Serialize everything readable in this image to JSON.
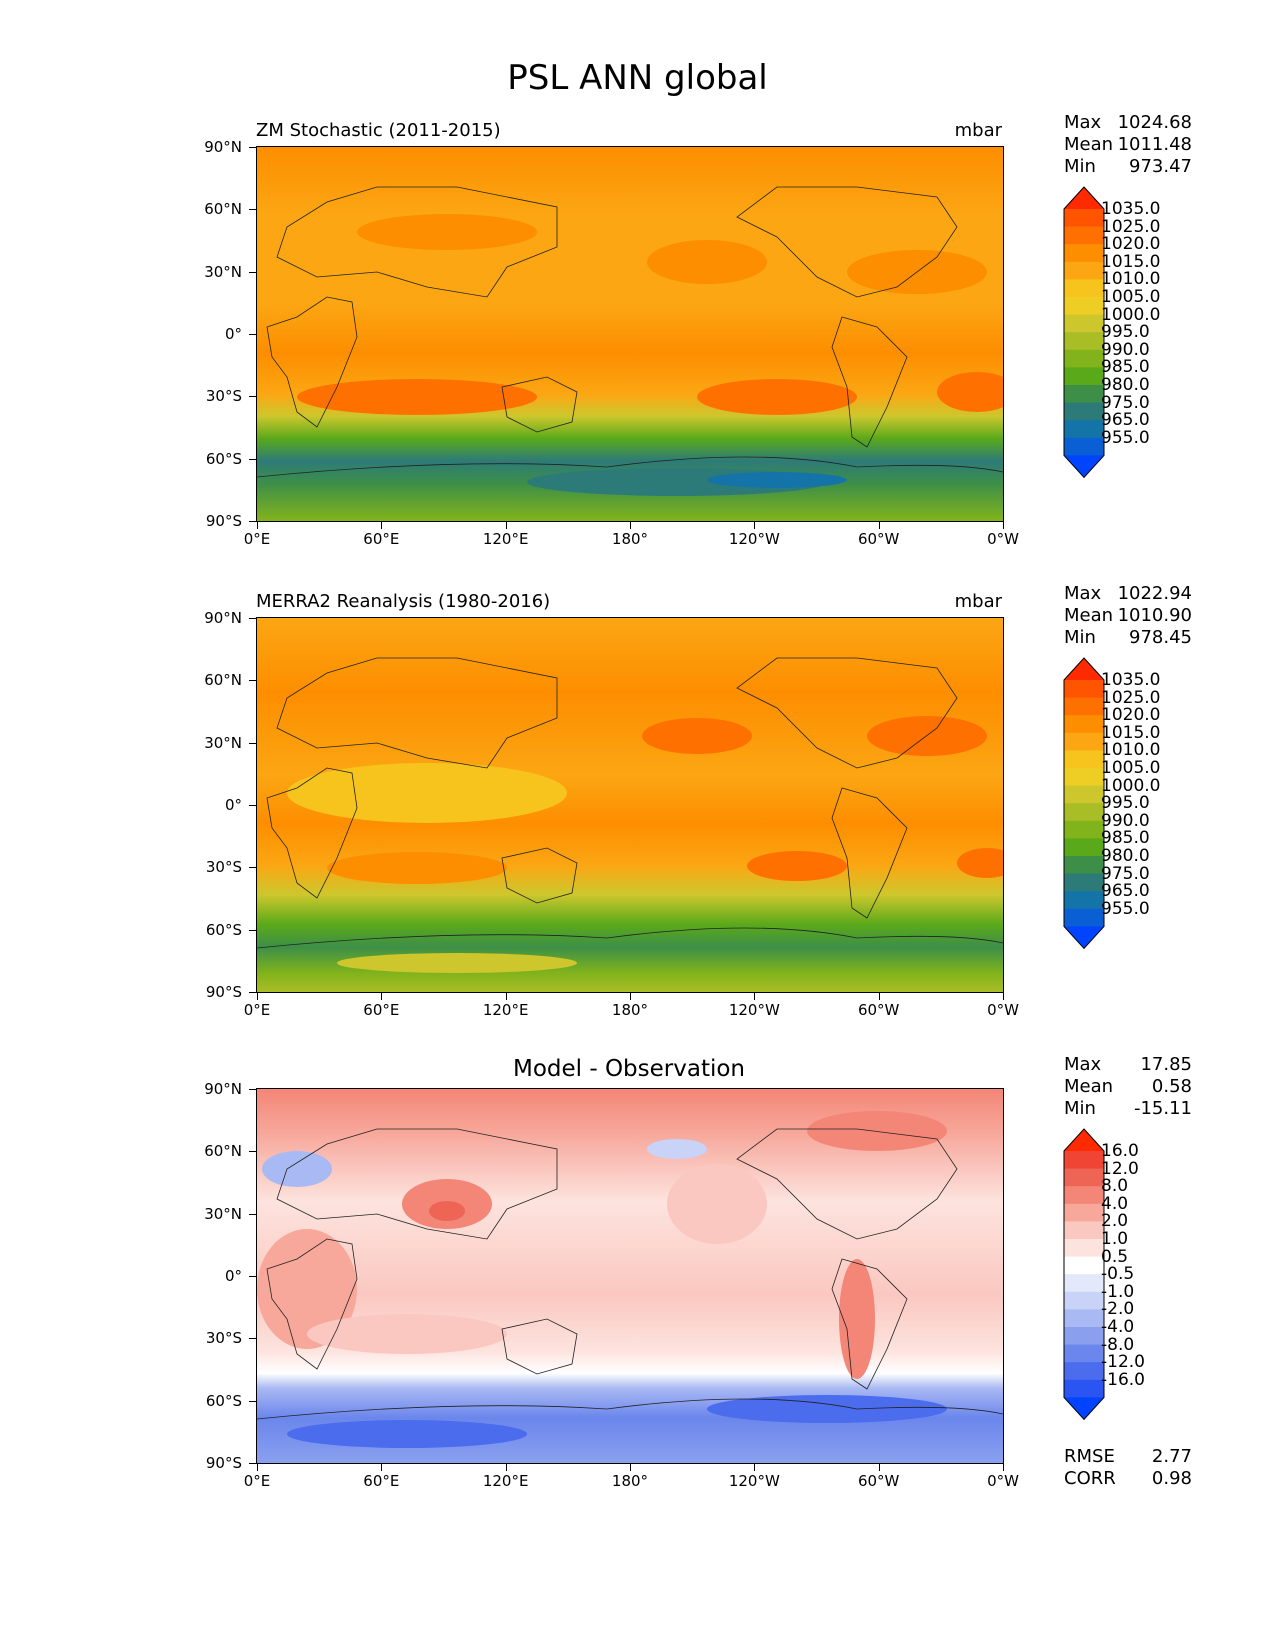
{
  "figure": {
    "title": "PSL ANN global"
  },
  "x_ticks": [
    "0°E",
    "60°E",
    "120°E",
    "180°",
    "120°W",
    "60°W",
    "0°W"
  ],
  "y_ticks": [
    "90°N",
    "60°N",
    "30°N",
    "0°",
    "30°S",
    "60°S",
    "90°S"
  ],
  "panels": [
    {
      "title_left": "ZM Stochastic (2011-2015)",
      "title_right": "mbar",
      "stats": [
        {
          "label": "Max",
          "value": "1024.68"
        },
        {
          "label": "Mean",
          "value": "1011.48"
        },
        {
          "label": "Min",
          "value": "973.47"
        }
      ],
      "colorbar_labels": [
        "1035.0",
        "1025.0",
        "1020.0",
        "1015.0",
        "1010.0",
        "1005.0",
        "1000.0",
        "995.0",
        "990.0",
        "985.0",
        "980.0",
        "975.0",
        "965.0",
        "955.0"
      ]
    },
    {
      "title_left": "MERRA2 Reanalysis (1980-2016)",
      "title_right": "mbar",
      "stats": [
        {
          "label": "Max",
          "value": "1022.94"
        },
        {
          "label": "Mean",
          "value": "1010.90"
        },
        {
          "label": "Min",
          "value": "978.45"
        }
      ],
      "colorbar_labels": [
        "1035.0",
        "1025.0",
        "1020.0",
        "1015.0",
        "1010.0",
        "1005.0",
        "1000.0",
        "995.0",
        "990.0",
        "985.0",
        "980.0",
        "975.0",
        "965.0",
        "955.0"
      ]
    },
    {
      "title_center": "Model - Observation",
      "stats": [
        {
          "label": "Max",
          "value": "17.85"
        },
        {
          "label": "Mean",
          "value": "0.58"
        },
        {
          "label": "Min",
          "value": "-15.11"
        }
      ],
      "colorbar_labels": [
        "16.0",
        "12.0",
        "8.0",
        "4.0",
        "2.0",
        "1.0",
        "0.5",
        "-0.5",
        "-1.0",
        "-2.0",
        "-4.0",
        "-8.0",
        "-12.0",
        "-16.0"
      ],
      "extra_stats": [
        {
          "label": "RMSE",
          "value": "2.77"
        },
        {
          "label": "CORR",
          "value": "0.98"
        }
      ]
    }
  ],
  "colors": {
    "psl_scale": [
      "#ff2a00",
      "#ff5500",
      "#fe7100",
      "#fd8e00",
      "#fca613",
      "#f6c41d",
      "#eece24",
      "#cdc72d",
      "#a9bd26",
      "#82b31b",
      "#5aa91a",
      "#3d8f48",
      "#2d7b78",
      "#1474a8",
      "#0a5fd4",
      "#0044ff"
    ],
    "diff_scale": [
      "#ff2a00",
      "#f04534",
      "#ee6555",
      "#f38677",
      "#f7a89b",
      "#fac8c0",
      "#fde3de",
      "#ffffff",
      "#e3e8fb",
      "#c8d3f7",
      "#a9b9f3",
      "#8aa0ef",
      "#6b86ec",
      "#4a6ced",
      "#2a55f2",
      "#0044ff"
    ]
  }
}
